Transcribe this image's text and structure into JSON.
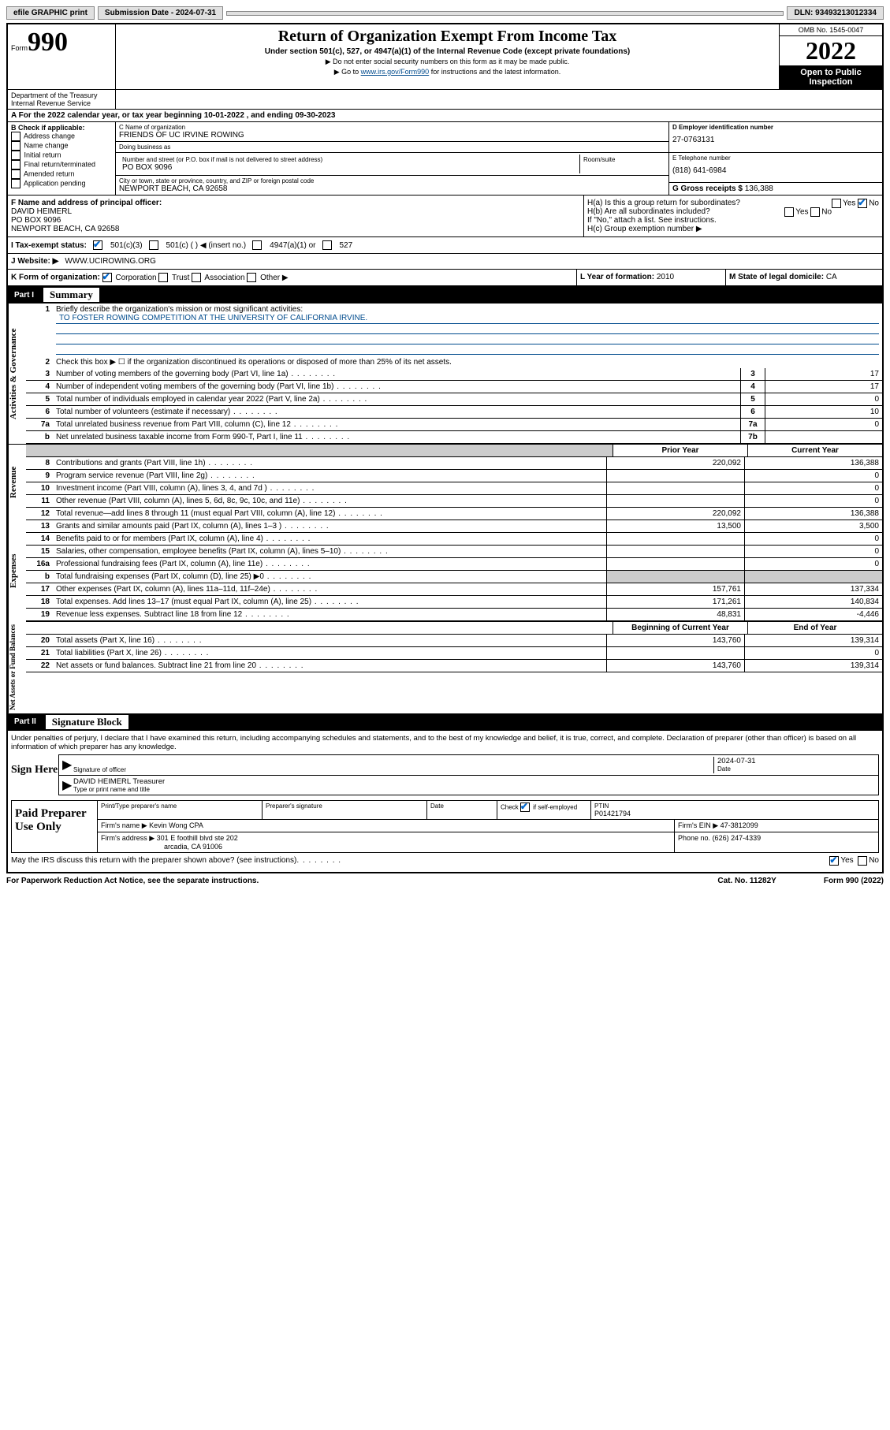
{
  "topbar": {
    "efile": "efile GRAPHIC print",
    "sub_label": "Submission Date - 2024-07-31",
    "dln": "DLN: 93493213012334"
  },
  "header": {
    "form_prefix": "Form",
    "form_num": "990",
    "title": "Return of Organization Exempt From Income Tax",
    "subtitle": "Under section 501(c), 527, or 4947(a)(1) of the Internal Revenue Code (except private foundations)",
    "note1": "▶ Do not enter social security numbers on this form as it may be made public.",
    "note2_pre": "▶ Go to ",
    "note2_link": "www.irs.gov/Form990",
    "note2_post": " for instructions and the latest information.",
    "omb": "OMB No. 1545-0047",
    "year": "2022",
    "open": "Open to Public Inspection",
    "dept": "Department of the Treasury Internal Revenue Service"
  },
  "rowA": {
    "prefix": "A For the 2022 calendar year, or tax year beginning ",
    "begin": "10-01-2022",
    "mid": " , and ending ",
    "end": "09-30-2023"
  },
  "colB": {
    "header": "B Check if applicable:",
    "items": [
      "Address change",
      "Name change",
      "Initial return",
      "Final return/terminated",
      "Amended return",
      "Application pending"
    ]
  },
  "colC": {
    "name_label": "C Name of organization",
    "name": "FRIENDS OF UC IRVINE ROWING",
    "dba_label": "Doing business as",
    "dba": "",
    "addr_label": "Number and street (or P.O. box if mail is not delivered to street address)",
    "suite_label": "Room/suite",
    "addr": "PO BOX 9096",
    "city_label": "City or town, state or province, country, and ZIP or foreign postal code",
    "city": "NEWPORT BEACH, CA  92658"
  },
  "colD": {
    "ein_label": "D Employer identification number",
    "ein": "27-0763131",
    "phone_label": "E Telephone number",
    "phone": "(818) 641-6984",
    "gross_label": "G Gross receipts $",
    "gross": "136,388"
  },
  "rowF": {
    "label": "F Name and address of principal officer:",
    "name": "DAVID HEIMERL",
    "addr1": "PO BOX 9096",
    "addr2": "NEWPORT BEACH, CA  92658"
  },
  "rowH": {
    "ha": "H(a)  Is this a group return for subordinates?",
    "hb": "H(b)  Are all subordinates included?",
    "hb_note": "If \"No,\" attach a list. See instructions.",
    "hc": "H(c)  Group exemption number ▶",
    "yes": "Yes",
    "no": "No"
  },
  "rowI": {
    "label": "I  Tax-exempt status:",
    "opt1": "501(c)(3)",
    "opt2": "501(c) (  ) ◀ (insert no.)",
    "opt3": "4947(a)(1) or",
    "opt4": "527"
  },
  "rowJ": {
    "label": "J  Website: ▶",
    "val": "WWW.UCIROWING.ORG"
  },
  "rowK": {
    "label": "K Form of organization:",
    "opts": [
      "Corporation",
      "Trust",
      "Association",
      "Other ▶"
    ]
  },
  "rowL": {
    "label": "L Year of formation: ",
    "val": "2010"
  },
  "rowM": {
    "label": "M State of legal domicile: ",
    "val": "CA"
  },
  "part1": {
    "label": "Part I",
    "title": "Summary",
    "vtab1": "Activities & Governance",
    "vtab2": "Revenue",
    "vtab3": "Expenses",
    "vtab4": "Net Assets or Fund Balances",
    "line1_label": "Briefly describe the organization's mission or most significant activities:",
    "line1_val": "TO FOSTER ROWING COMPETITION AT THE UNIVERSITY OF CALIFORNIA IRVINE.",
    "line2": "Check this box ▶ ☐  if the organization discontinued its operations or disposed of more than 25% of its net assets.",
    "lines_gov": [
      {
        "n": "3",
        "t": "Number of voting members of the governing body (Part VI, line 1a)",
        "box": "3",
        "v": "17"
      },
      {
        "n": "4",
        "t": "Number of independent voting members of the governing body (Part VI, line 1b)",
        "box": "4",
        "v": "17"
      },
      {
        "n": "5",
        "t": "Total number of individuals employed in calendar year 2022 (Part V, line 2a)",
        "box": "5",
        "v": "0"
      },
      {
        "n": "6",
        "t": "Total number of volunteers (estimate if necessary)",
        "box": "6",
        "v": "10"
      },
      {
        "n": "7a",
        "t": "Total unrelated business revenue from Part VIII, column (C), line 12",
        "box": "7a",
        "v": "0"
      },
      {
        "n": "b",
        "t": "Net unrelated business taxable income from Form 990-T, Part I, line 11",
        "box": "7b",
        "v": ""
      }
    ],
    "hdr_prior": "Prior Year",
    "hdr_curr": "Current Year",
    "lines_rev": [
      {
        "n": "8",
        "t": "Contributions and grants (Part VIII, line 1h)",
        "p": "220,092",
        "c": "136,388"
      },
      {
        "n": "9",
        "t": "Program service revenue (Part VIII, line 2g)",
        "p": "",
        "c": "0"
      },
      {
        "n": "10",
        "t": "Investment income (Part VIII, column (A), lines 3, 4, and 7d )",
        "p": "",
        "c": "0"
      },
      {
        "n": "11",
        "t": "Other revenue (Part VIII, column (A), lines 5, 6d, 8c, 9c, 10c, and 11e)",
        "p": "",
        "c": "0"
      },
      {
        "n": "12",
        "t": "Total revenue—add lines 8 through 11 (must equal Part VIII, column (A), line 12)",
        "p": "220,092",
        "c": "136,388"
      }
    ],
    "lines_exp": [
      {
        "n": "13",
        "t": "Grants and similar amounts paid (Part IX, column (A), lines 1–3 )",
        "p": "13,500",
        "c": "3,500"
      },
      {
        "n": "14",
        "t": "Benefits paid to or for members (Part IX, column (A), line 4)",
        "p": "",
        "c": "0"
      },
      {
        "n": "15",
        "t": "Salaries, other compensation, employee benefits (Part IX, column (A), lines 5–10)",
        "p": "",
        "c": "0"
      },
      {
        "n": "16a",
        "t": "Professional fundraising fees (Part IX, column (A), line 11e)",
        "p": "",
        "c": "0"
      },
      {
        "n": "b",
        "t": "Total fundraising expenses (Part IX, column (D), line 25) ▶0",
        "p": "shaded",
        "c": "shaded"
      },
      {
        "n": "17",
        "t": "Other expenses (Part IX, column (A), lines 11a–11d, 11f–24e)",
        "p": "157,761",
        "c": "137,334"
      },
      {
        "n": "18",
        "t": "Total expenses. Add lines 13–17 (must equal Part IX, column (A), line 25)",
        "p": "171,261",
        "c": "140,834"
      },
      {
        "n": "19",
        "t": "Revenue less expenses. Subtract line 18 from line 12",
        "p": "48,831",
        "c": "-4,446"
      }
    ],
    "hdr_begin": "Beginning of Current Year",
    "hdr_end": "End of Year",
    "lines_net": [
      {
        "n": "20",
        "t": "Total assets (Part X, line 16)",
        "p": "143,760",
        "c": "139,314"
      },
      {
        "n": "21",
        "t": "Total liabilities (Part X, line 26)",
        "p": "",
        "c": "0"
      },
      {
        "n": "22",
        "t": "Net assets or fund balances. Subtract line 21 from line 20",
        "p": "143,760",
        "c": "139,314"
      }
    ]
  },
  "part2": {
    "label": "Part II",
    "title": "Signature Block",
    "decl": "Under penalties of perjury, I declare that I have examined this return, including accompanying schedules and statements, and to the best of my knowledge and belief, it is true, correct, and complete. Declaration of preparer (other than officer) is based on all information of which preparer has any knowledge.",
    "sign_here": "Sign Here",
    "sig_officer": "Signature of officer",
    "sig_date_label": "Date",
    "sig_date": "2024-07-31",
    "sig_name": "DAVID HEIMERL Treasurer",
    "sig_name_label": "Type or print name and title",
    "paid_label": "Paid Preparer Use Only",
    "prep_name_label": "Print/Type preparer's name",
    "prep_sig_label": "Preparer's signature",
    "prep_date_label": "Date",
    "prep_check": "Check ☑ if self-employed",
    "ptin_label": "PTIN",
    "ptin": "P01421794",
    "firm_name_label": "Firm's name    ▶",
    "firm_name": "Kevin Wong CPA",
    "firm_ein_label": "Firm's EIN ▶",
    "firm_ein": "47-3812099",
    "firm_addr_label": "Firm's address ▶",
    "firm_addr1": "301 E foothill blvd ste 202",
    "firm_addr2": "arcadia, CA  91006",
    "firm_phone_label": "Phone no.",
    "firm_phone": "(626) 247-4339",
    "discuss": "May the IRS discuss this return with the preparer shown above? (see instructions)"
  },
  "footer": {
    "paperwork": "For Paperwork Reduction Act Notice, see the separate instructions.",
    "cat": "Cat. No. 11282Y",
    "form": "Form 990 (2022)"
  }
}
